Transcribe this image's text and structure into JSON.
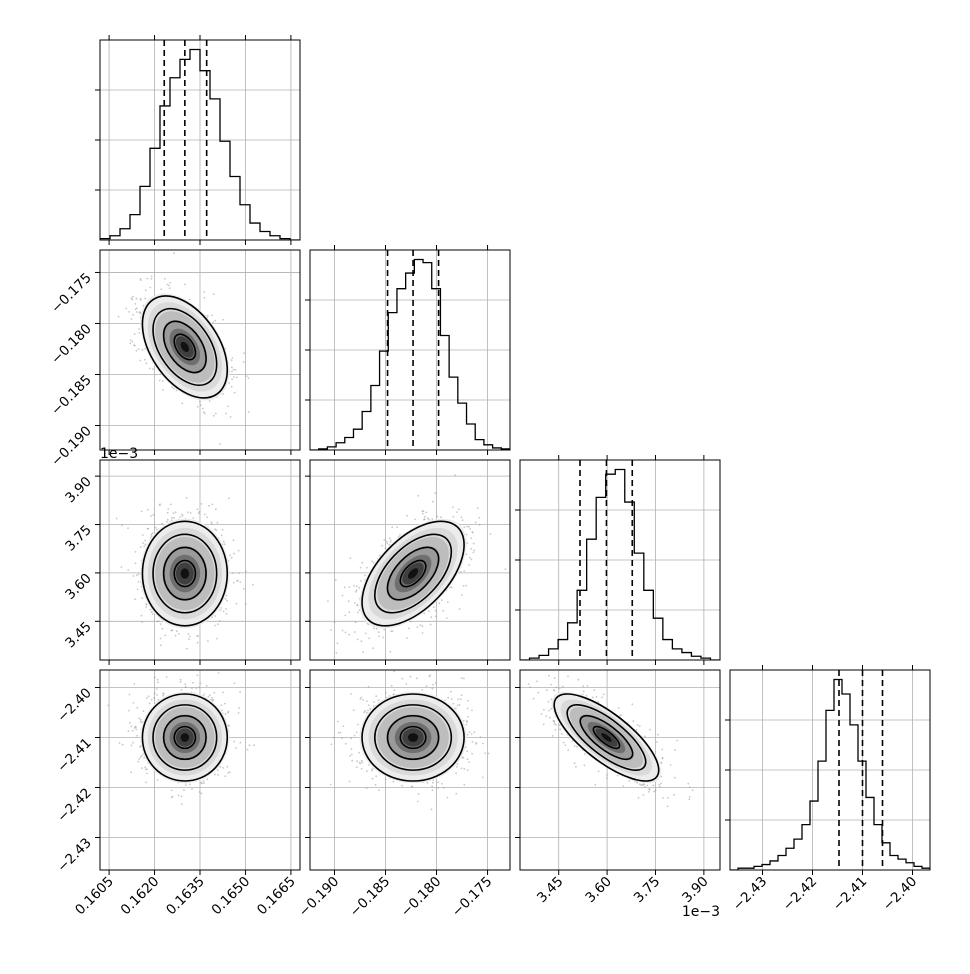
{
  "chart_data": {
    "type": "corner",
    "params": [
      {
        "range": [
          0.1602,
          0.1668
        ],
        "ticks": [
          0.1605,
          0.162,
          0.1635,
          0.165,
          0.1665
        ],
        "tick_labels": [
          "0.1605",
          "0.1620",
          "0.1635",
          "0.1650",
          "0.1665"
        ],
        "quantiles": [
          0.16232,
          0.163,
          0.16372
        ],
        "offset_label": ""
      },
      {
        "range": [
          -0.1924,
          -0.1728
        ],
        "ticks": [
          -0.19,
          -0.185,
          -0.18,
          -0.175
        ],
        "tick_labels": [
          "−0.190",
          "−0.185",
          "−0.180",
          "−0.175"
        ],
        "quantiles": [
          -0.1848,
          -0.1823,
          -0.1798
        ],
        "offset_label": ""
      },
      {
        "range": [
          3.33,
          3.95
        ],
        "ticks": [
          3.45,
          3.6,
          3.75,
          3.9
        ],
        "tick_labels": [
          "3.45",
          "3.60",
          "3.75",
          "3.90"
        ],
        "quantiles": [
          3.516,
          3.598,
          3.678
        ],
        "offset_label": "1e−3"
      },
      {
        "range": [
          -2.4365,
          -2.3965
        ],
        "ticks": [
          -2.43,
          -2.42,
          -2.41,
          -2.4
        ],
        "tick_labels": [
          "−2.43",
          "−2.42",
          "−2.41",
          "−2.40"
        ],
        "quantiles": [
          -2.4147,
          -2.41,
          -2.406
        ],
        "offset_label": ""
      }
    ],
    "histograms": [
      {
        "counts": [
          1,
          3,
          8,
          18,
          38,
          65,
          95,
          115,
          128,
          135,
          120,
          100,
          70,
          45,
          25,
          12,
          6,
          3,
          1,
          0
        ]
      },
      {
        "counts": [
          0,
          1,
          3,
          7,
          12,
          20,
          37,
          62,
          95,
          132,
          155,
          170,
          183,
          180,
          155,
          110,
          70,
          45,
          25,
          10,
          5,
          2,
          1
        ]
      },
      {
        "counts": [
          0,
          2,
          5,
          12,
          22,
          40,
          75,
          130,
          175,
          200,
          205,
          170,
          115,
          75,
          45,
          22,
          12,
          8,
          4,
          2,
          0
        ]
      },
      {
        "counts": [
          0,
          1,
          1,
          2,
          3,
          5,
          8,
          12,
          17,
          25,
          38,
          60,
          88,
          105,
          97,
          80,
          60,
          40,
          25,
          15,
          8,
          6,
          4,
          2,
          1
        ]
      }
    ],
    "correlations": {
      "1-0": -0.45,
      "2-0": 0.0,
      "2-1": 0.55,
      "3-0": 0.0,
      "3-1": 0.0,
      "3-2": -0.75
    },
    "contour_levels": [
      0.5,
      1.0,
      1.5,
      2.0
    ],
    "colors": {
      "line": "#000000",
      "grid": "#b0b0b0",
      "scatter": "#9a9a9a"
    }
  }
}
